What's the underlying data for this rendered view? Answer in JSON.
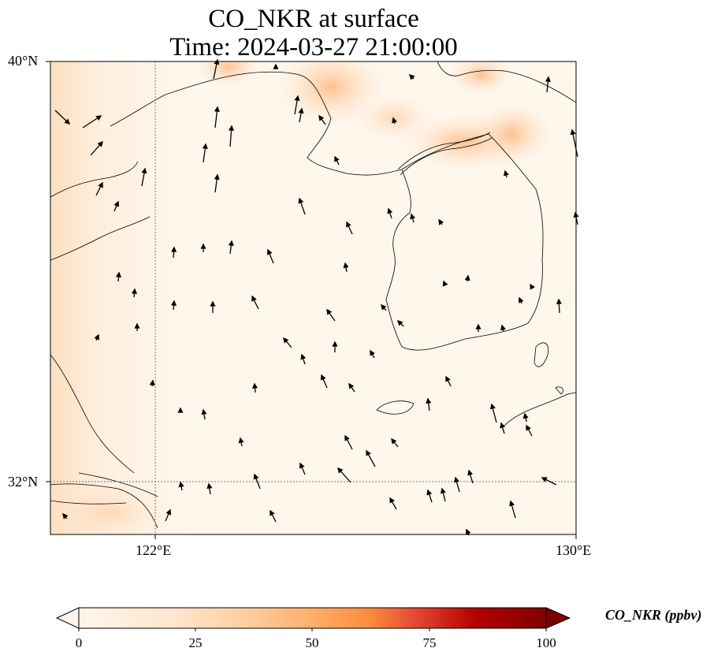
{
  "title": {
    "line1": "CO_NKR at surface",
    "line2": "Time: 2024-03-27 21:00:00"
  },
  "map": {
    "lat_labels": [
      "40°N",
      "32°N"
    ],
    "lon_labels": [
      "122°E",
      "130°E"
    ],
    "extent": {
      "lon_min": 120,
      "lon_max": 130,
      "lat_min": 31,
      "lat_max": 40
    },
    "gridlines": {
      "lons": [
        122
      ],
      "lats": [
        32
      ]
    },
    "field_color_low": "#fff5eb",
    "field_color_high": "#fdae6b"
  },
  "colorbar": {
    "label": "CO_NKR (ppbv)",
    "ticks": [
      "0",
      "25",
      "50",
      "75",
      "100"
    ],
    "range": [
      0,
      100
    ],
    "extend": "both",
    "colormap": "OrRd"
  }
}
